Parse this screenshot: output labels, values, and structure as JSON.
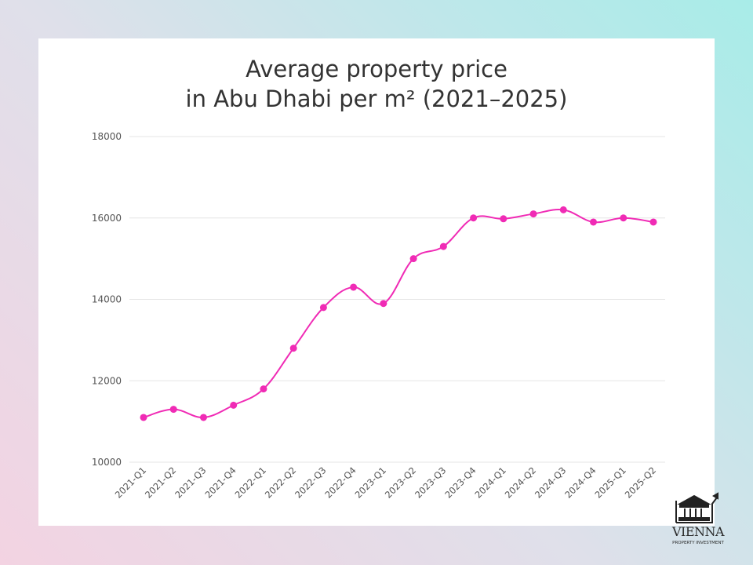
{
  "chart_data": {
    "type": "line",
    "title": "Average property price\nin Abu Dhabi per m² (2021–2025)",
    "title_lines": [
      "Average property price",
      "in Abu Dhabi per m² (2021–2025)"
    ],
    "categories": [
      "2021-Q1",
      "2021-Q2",
      "2021-Q3",
      "2021-Q4",
      "2022-Q1",
      "2022-Q2",
      "2022-Q3",
      "2022-Q4",
      "2023-Q1",
      "2023-Q2",
      "2023-Q3",
      "2023-Q4",
      "2024-Q1",
      "2024-Q2",
      "2024-Q3",
      "2024-Q4",
      "2025-Q1",
      "2025-Q2"
    ],
    "values": [
      11100,
      11300,
      11100,
      11400,
      11800,
      12800,
      13800,
      14300,
      13900,
      15000,
      15300,
      16000,
      15980,
      16100,
      16200,
      15900,
      16000,
      15900
    ],
    "ylim": [
      10000,
      18000
    ],
    "yticks": [
      10000,
      12000,
      14000,
      16000,
      18000
    ],
    "grid": true,
    "line_color": "#f02bb5",
    "xlabel": "",
    "ylabel": ""
  },
  "logo": {
    "name": "VIENNA",
    "tagline": "PROPERTY INVESTMENT"
  }
}
